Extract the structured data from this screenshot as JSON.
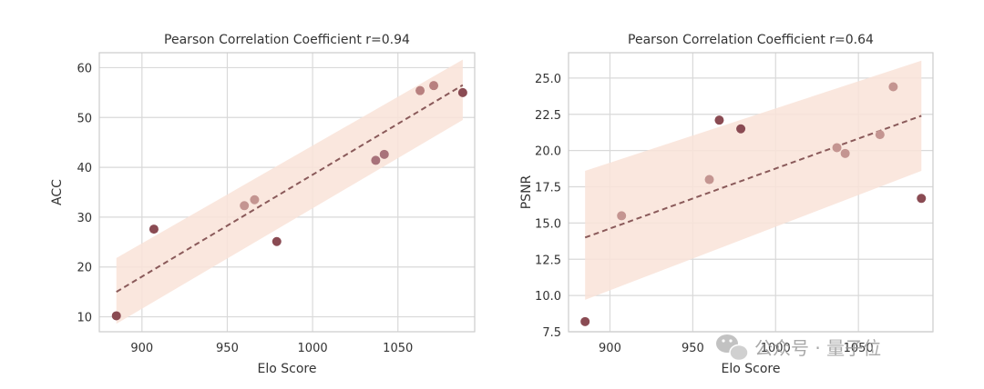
{
  "chart_data": [
    {
      "type": "scatter",
      "title": "Pearson Correlation Coefficient r=0.94",
      "xlabel": "Elo Score",
      "ylabel": "ACC",
      "xlim": [
        875,
        1095
      ],
      "ylim": [
        7,
        63
      ],
      "xticks": [
        900,
        950,
        1000,
        1050
      ],
      "yticks": [
        10,
        20,
        30,
        40,
        50,
        60
      ],
      "grid": true,
      "points": [
        {
          "x": 885,
          "y": 10.2,
          "color": "#8a4b53"
        },
        {
          "x": 907,
          "y": 27.6,
          "color": "#8a4b53"
        },
        {
          "x": 960,
          "y": 32.3,
          "color": "#c49591"
        },
        {
          "x": 966,
          "y": 33.5,
          "color": "#c49591"
        },
        {
          "x": 979,
          "y": 25.1,
          "color": "#8a4b53"
        },
        {
          "x": 1037,
          "y": 41.4,
          "color": "#a8727a"
        },
        {
          "x": 1042,
          "y": 42.6,
          "color": "#a8727a"
        },
        {
          "x": 1063,
          "y": 55.4,
          "color": "#b8807f"
        },
        {
          "x": 1071,
          "y": 56.4,
          "color": "#b8807f"
        },
        {
          "x": 1088,
          "y": 55.0,
          "color": "#8a4b53"
        }
      ],
      "fit": {
        "x": [
          885,
          1088
        ],
        "y": [
          15.0,
          56.5
        ]
      },
      "ci_band": {
        "x": [
          885,
          1088
        ],
        "lower": [
          8.6,
          49.5
        ],
        "upper": [
          21.8,
          61.6
        ]
      }
    },
    {
      "type": "scatter",
      "title": "Pearson Correlation Coefficient r=0.64",
      "xlabel": "Elo Score",
      "ylabel": "PSNR",
      "xlim": [
        875,
        1095
      ],
      "ylim": [
        7.5,
        26.75
      ],
      "xticks": [
        900,
        950,
        1000,
        1050
      ],
      "yticks": [
        "7.5",
        "10.0",
        "12.5",
        "15.0",
        "17.5",
        "20.0",
        "22.5",
        "25.0"
      ],
      "grid": true,
      "points": [
        {
          "x": 885,
          "y": 8.2,
          "color": "#8a4b53"
        },
        {
          "x": 907,
          "y": 15.5,
          "color": "#c49591"
        },
        {
          "x": 960,
          "y": 18.0,
          "color": "#c49591"
        },
        {
          "x": 966,
          "y": 22.1,
          "color": "#8a4b53"
        },
        {
          "x": 979,
          "y": 21.5,
          "color": "#8a4b53"
        },
        {
          "x": 1037,
          "y": 20.2,
          "color": "#c49591"
        },
        {
          "x": 1042,
          "y": 19.8,
          "color": "#c49591"
        },
        {
          "x": 1063,
          "y": 21.1,
          "color": "#c49591"
        },
        {
          "x": 1071,
          "y": 24.4,
          "color": "#c49591"
        },
        {
          "x": 1088,
          "y": 16.7,
          "color": "#8a4b53"
        }
      ],
      "fit": {
        "x": [
          885,
          1088
        ],
        "y": [
          14.0,
          22.4
        ]
      },
      "ci_band": {
        "x": [
          885,
          1088
        ],
        "lower": [
          9.7,
          18.6
        ],
        "upper": [
          18.6,
          26.2
        ]
      }
    }
  ],
  "colors": {
    "band": "#f9e3d8",
    "fit": "#8a5a5a",
    "grid": "#d9d9d9",
    "frame": "#cccccc"
  },
  "watermark": {
    "icon": "wechat-icon",
    "text": "公众号 · 量子位"
  }
}
